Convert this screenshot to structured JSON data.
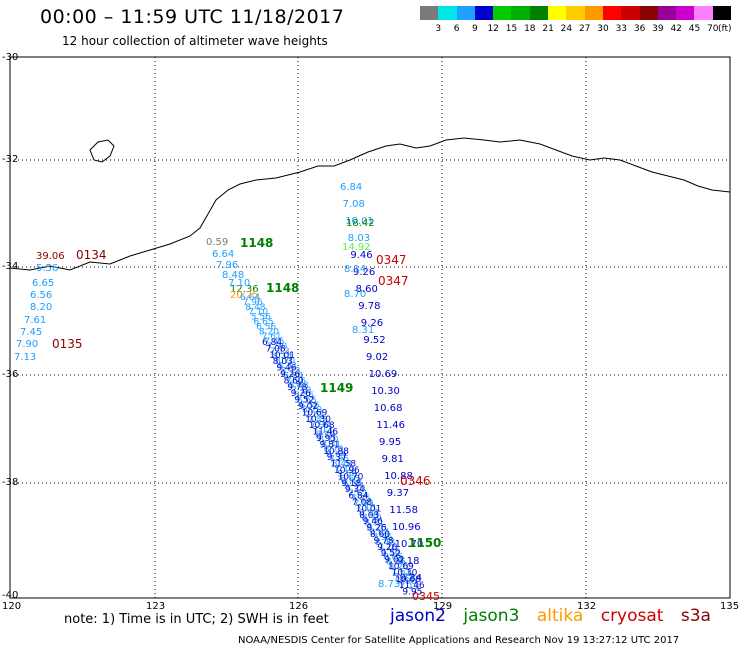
{
  "header": {
    "title": "00:00 – 11:59 UTC 11/18/2017",
    "subtitle": "12 hour collection of altimeter wave heights"
  },
  "colorbar": {
    "colors": [
      "#7a7a7a",
      "#00e5e5",
      "#1ea0ff",
      "#0000cc",
      "#00cc00",
      "#00b000",
      "#008000",
      "#ffff00",
      "#ffcc00",
      "#ff9900",
      "#ff0000",
      "#cc0000",
      "#8b0000",
      "#990099",
      "#cc00cc",
      "#ff80ff",
      "#000000"
    ],
    "labels": [
      "3",
      "6",
      "9",
      "12",
      "15",
      "18",
      "21",
      "24",
      "27",
      "30",
      "33",
      "36",
      "39",
      "42",
      "45",
      "70"
    ],
    "unit": "(ft)"
  },
  "axes": {
    "lat_labels": [
      "-30",
      "-32",
      "-34",
      "-36",
      "-38",
      "-40"
    ],
    "lon_labels": [
      "120",
      "123",
      "126",
      "129",
      "132",
      "135"
    ]
  },
  "obs": {
    "jason2_track1": [
      "6.84",
      "7.08",
      "10.01",
      "8.03",
      "9.46",
      "9.26",
      "8.60",
      "9.78",
      "9.26",
      "9.52",
      "9.02",
      "10.69",
      "10.30",
      "10.68",
      "11.46",
      "9.95",
      "9.81",
      "10.88",
      "9.37",
      "11.58",
      "10.96",
      "10.70",
      "9.18",
      "9.34"
    ],
    "jason2_time": "0347",
    "jason2_time2": "0345",
    "jason3_track": [
      "18.42",
      "0.59",
      "12.36"
    ],
    "jason3_times": [
      "1148",
      "1148",
      "1149",
      "1150"
    ],
    "altika_track": [
      "14.92",
      "20.25"
    ],
    "cryosat_times": [
      "0134",
      "0135"
    ],
    "cryosat_values": [
      "39.06"
    ],
    "light_track": [
      "6.64",
      "7.96",
      "8.48",
      "7.10",
      "5.56",
      "6.65",
      "6.56",
      "8.20",
      "7.61",
      "7.45",
      "7.90",
      "7.13",
      "8.14",
      "8.70",
      "8.31",
      "8.73"
    ],
    "colors": {
      "jason2": "#0000cc",
      "jason3": "#008000",
      "altika": "#ff9900",
      "cryosat": "#cc0000",
      "cryosat_dark": "#8b0000",
      "light": "#1ea0ff",
      "grey": "#7a7a7a",
      "lightgreen": "#66ee44"
    }
  },
  "footer": {
    "note": "note: 1) Time is in UTC; 2) SWH is in feet",
    "legend": [
      {
        "label": "jason2",
        "color": "#0000cc"
      },
      {
        "label": "jason3",
        "color": "#008000"
      },
      {
        "label": "altika",
        "color": "#ff9900"
      },
      {
        "label": "cryosat",
        "color": "#cc0000"
      },
      {
        "label": "s3a",
        "color": "#8b0000"
      }
    ],
    "credit": "NOAA/NESDIS Center for Satellite Applications and Research   Nov 19 13:27:12 UTC 2017"
  }
}
